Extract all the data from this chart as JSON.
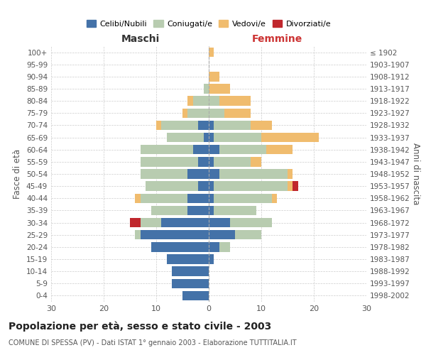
{
  "age_groups": [
    "0-4",
    "5-9",
    "10-14",
    "15-19",
    "20-24",
    "25-29",
    "30-34",
    "35-39",
    "40-44",
    "45-49",
    "50-54",
    "55-59",
    "60-64",
    "65-69",
    "70-74",
    "75-79",
    "80-84",
    "85-89",
    "90-94",
    "95-99",
    "100+"
  ],
  "birth_years": [
    "1998-2002",
    "1993-1997",
    "1988-1992",
    "1983-1987",
    "1978-1982",
    "1973-1977",
    "1968-1972",
    "1963-1967",
    "1958-1962",
    "1953-1957",
    "1948-1952",
    "1943-1947",
    "1938-1942",
    "1933-1937",
    "1928-1932",
    "1923-1927",
    "1918-1922",
    "1913-1917",
    "1908-1912",
    "1903-1907",
    "≤ 1902"
  ],
  "male": {
    "celibi": [
      5,
      7,
      7,
      8,
      11,
      13,
      9,
      4,
      4,
      2,
      4,
      2,
      3,
      1,
      2,
      0,
      0,
      0,
      0,
      0,
      0
    ],
    "coniugati": [
      0,
      0,
      0,
      0,
      0,
      1,
      4,
      7,
      9,
      10,
      9,
      11,
      10,
      7,
      7,
      4,
      3,
      1,
      0,
      0,
      0
    ],
    "vedovi": [
      0,
      0,
      0,
      0,
      0,
      0,
      0,
      0,
      1,
      0,
      0,
      0,
      0,
      0,
      1,
      1,
      1,
      0,
      0,
      0,
      0
    ],
    "divorziati": [
      0,
      0,
      0,
      0,
      0,
      0,
      2,
      0,
      0,
      0,
      0,
      0,
      0,
      0,
      0,
      0,
      0,
      0,
      0,
      0,
      0
    ]
  },
  "female": {
    "nubili": [
      0,
      0,
      0,
      1,
      2,
      5,
      4,
      1,
      1,
      1,
      2,
      1,
      2,
      1,
      1,
      0,
      0,
      0,
      0,
      0,
      0
    ],
    "coniugate": [
      0,
      0,
      0,
      0,
      2,
      5,
      8,
      8,
      11,
      14,
      13,
      7,
      9,
      9,
      7,
      3,
      2,
      0,
      0,
      0,
      0
    ],
    "vedove": [
      0,
      0,
      0,
      0,
      0,
      0,
      0,
      0,
      1,
      1,
      1,
      2,
      5,
      11,
      4,
      5,
      6,
      4,
      2,
      0,
      1
    ],
    "divorziate": [
      0,
      0,
      0,
      0,
      0,
      0,
      0,
      0,
      0,
      1,
      0,
      0,
      0,
      0,
      0,
      0,
      0,
      0,
      0,
      0,
      0
    ]
  },
  "colors": {
    "celibi_nubili": "#4472A8",
    "coniugati": "#B8CCB0",
    "vedovi": "#F0BC6E",
    "divorziati": "#C0272D"
  },
  "title": "Popolazione per età, sesso e stato civile - 2003",
  "subtitle": "COMUNE DI SPESSA (PV) - Dati ISTAT 1° gennaio 2003 - Elaborazione TUTTITALIA.IT",
  "xlabel_left": "Maschi",
  "xlabel_right": "Femmine",
  "ylabel_left": "Fasce di età",
  "ylabel_right": "Anni di nascita",
  "xlim": 30,
  "background_color": "#ffffff",
  "grid_color": "#cccccc"
}
